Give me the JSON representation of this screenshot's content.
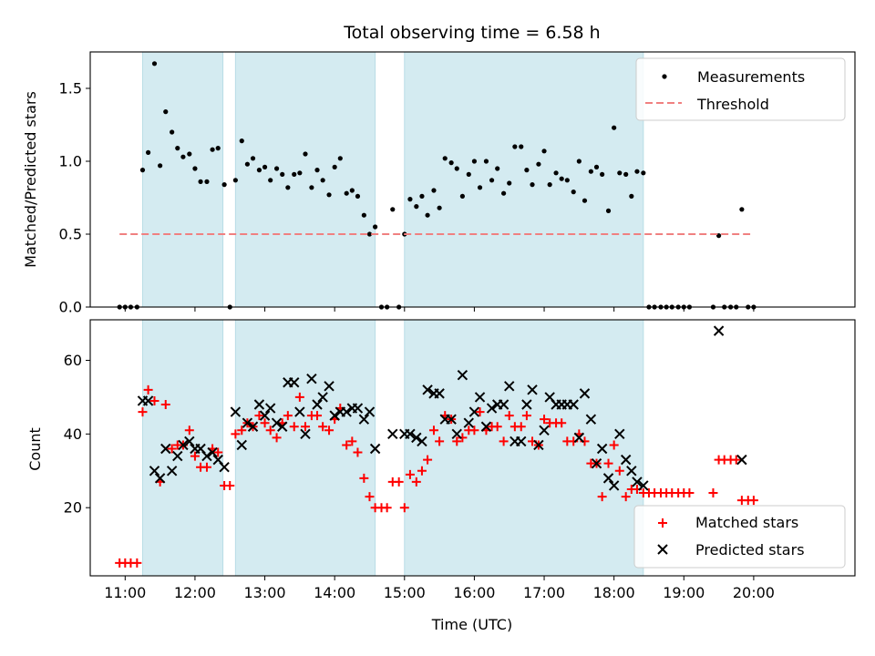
{
  "chart_data": [
    {
      "type": "scatter",
      "title": "Total observing time = 6.58 h",
      "ylabel": "Matched/Predicted stars",
      "xlabel": "",
      "x_unit": "hours_utc",
      "xlim": [
        10.5,
        21.45
      ],
      "ylim": [
        0,
        1.75
      ],
      "yticks": [
        0.0,
        0.5,
        1.0,
        1.5
      ],
      "ytick_labels": [
        "0.0",
        "0.5",
        "1.0",
        "1.5"
      ],
      "grid": false,
      "legend_position": "top-right",
      "shaded_intervals": [
        [
          11.25,
          12.4
        ],
        [
          12.58,
          14.58
        ],
        [
          15.0,
          18.42
        ]
      ],
      "shade_color": "#d4ebf1",
      "series": [
        {
          "name": "Measurements",
          "kind": "scatter",
          "marker": "dot",
          "color": "#000000",
          "x": [
            10.92,
            11.0,
            11.08,
            11.17,
            11.25,
            11.33,
            11.42,
            11.5,
            11.58,
            11.67,
            11.75,
            11.83,
            11.92,
            12.0,
            12.08,
            12.17,
            12.25,
            12.33,
            12.42,
            12.5,
            12.58,
            12.67,
            12.75,
            12.83,
            12.92,
            13.0,
            13.08,
            13.17,
            13.25,
            13.33,
            13.42,
            13.5,
            13.58,
            13.67,
            13.75,
            13.83,
            13.92,
            14.0,
            14.08,
            14.17,
            14.25,
            14.33,
            14.42,
            14.5,
            14.58,
            14.67,
            14.75,
            14.83,
            14.92,
            15.0,
            15.08,
            15.17,
            15.25,
            15.33,
            15.42,
            15.5,
            15.58,
            15.67,
            15.75,
            15.83,
            15.92,
            16.0,
            16.08,
            16.17,
            16.25,
            16.33,
            16.42,
            16.5,
            16.58,
            16.67,
            16.75,
            16.83,
            16.92,
            17.0,
            17.08,
            17.17,
            17.25,
            17.33,
            17.42,
            17.5,
            17.58,
            17.67,
            17.75,
            17.83,
            17.92,
            18.0,
            18.08,
            18.17,
            18.25,
            18.33,
            18.42,
            18.5,
            18.58,
            18.67,
            18.75,
            18.83,
            18.92,
            19.0,
            19.08,
            19.42,
            19.5,
            19.58,
            19.67,
            19.75,
            19.83,
            19.92,
            20.0
          ],
          "y": [
            0,
            0,
            0,
            0,
            0.94,
            1.06,
            1.67,
            0.97,
            1.34,
            1.2,
            1.09,
            1.03,
            1.05,
            0.95,
            0.86,
            0.86,
            1.08,
            1.09,
            0.84,
            0,
            0.87,
            1.14,
            0.98,
            1.02,
            0.94,
            0.96,
            0.87,
            0.95,
            0.91,
            0.82,
            0.91,
            0.92,
            1.05,
            0.82,
            0.94,
            0.87,
            0.77,
            0.96,
            1.02,
            0.78,
            0.8,
            0.76,
            0.63,
            0.5,
            0.55,
            0,
            0,
            0.67,
            0,
            0.5,
            0.74,
            0.69,
            0.76,
            0.63,
            0.8,
            0.68,
            1.02,
            0.99,
            0.95,
            0.76,
            0.91,
            1.0,
            0.82,
            1.0,
            0.87,
            0.95,
            0.78,
            0.85,
            1.1,
            1.1,
            0.94,
            0.84,
            0.98,
            1.07,
            0.84,
            0.92,
            0.88,
            0.87,
            0.79,
            1.0,
            0.73,
            0.93,
            0.96,
            0.91,
            0.66,
            1.23,
            0.92,
            0.91,
            0.76,
            0.93,
            0.92,
            0,
            0,
            0,
            0,
            0,
            0,
            0,
            0,
            0,
            0.49,
            0,
            0,
            0,
            0.67,
            0,
            0
          ]
        },
        {
          "name": "Threshold",
          "kind": "line",
          "dash": true,
          "color": "#f08080",
          "x": [
            10.92,
            19.95
          ],
          "y": [
            0.5,
            0.5
          ]
        }
      ]
    },
    {
      "type": "scatter",
      "title": "",
      "ylabel": "Count",
      "xlabel": "Time (UTC)",
      "x_unit": "hours_utc",
      "xlim": [
        10.5,
        21.45
      ],
      "ylim": [
        1.5,
        71
      ],
      "yticks": [
        20,
        40,
        60
      ],
      "ytick_labels": [
        "20",
        "40",
        "60"
      ],
      "xticks": [
        11,
        12,
        13,
        14,
        15,
        16,
        17,
        18,
        19,
        20
      ],
      "xtick_labels": [
        "11:00",
        "12:00",
        "13:00",
        "14:00",
        "15:00",
        "16:00",
        "17:00",
        "18:00",
        "19:00",
        "20:00"
      ],
      "grid": false,
      "legend_position": "bottom-right",
      "shaded_intervals": [
        [
          11.25,
          12.4
        ],
        [
          12.58,
          14.58
        ],
        [
          15.0,
          18.42
        ]
      ],
      "shade_color": "#d4ebf1",
      "series": [
        {
          "name": "Matched stars",
          "kind": "scatter",
          "marker": "plus",
          "color": "#ff0000",
          "x": [
            10.92,
            11.0,
            11.08,
            11.17,
            11.25,
            11.33,
            11.42,
            11.5,
            11.58,
            11.67,
            11.75,
            11.83,
            11.92,
            12.0,
            12.08,
            12.17,
            12.25,
            12.33,
            12.42,
            12.5,
            12.58,
            12.67,
            12.75,
            12.83,
            12.92,
            13.0,
            13.08,
            13.17,
            13.25,
            13.33,
            13.42,
            13.5,
            13.58,
            13.67,
            13.75,
            13.83,
            13.92,
            14.0,
            14.08,
            14.17,
            14.25,
            14.33,
            14.42,
            14.5,
            14.58,
            14.67,
            14.75,
            14.83,
            14.92,
            15.0,
            15.08,
            15.17,
            15.25,
            15.33,
            15.42,
            15.5,
            15.58,
            15.67,
            15.75,
            15.83,
            15.92,
            16.0,
            16.08,
            16.17,
            16.25,
            16.33,
            16.42,
            16.5,
            16.58,
            16.67,
            16.75,
            16.83,
            16.92,
            17.0,
            17.08,
            17.17,
            17.25,
            17.33,
            17.42,
            17.5,
            17.58,
            17.67,
            17.75,
            17.83,
            17.92,
            18.0,
            18.08,
            18.17,
            18.25,
            18.33,
            18.42,
            18.5,
            18.58,
            18.67,
            18.75,
            18.83,
            18.92,
            19.0,
            19.08,
            19.42,
            19.5,
            19.58,
            19.67,
            19.75,
            19.83,
            19.92,
            20.0
          ],
          "y": [
            5,
            5,
            5,
            5,
            46,
            52,
            49,
            27,
            48,
            36,
            37,
            37,
            41,
            34,
            31,
            31,
            36,
            35,
            26,
            26,
            40,
            41,
            43,
            42,
            45,
            43,
            41,
            39,
            43,
            45,
            42,
            50,
            42,
            45,
            45,
            42,
            41,
            44,
            47,
            37,
            38,
            35,
            28,
            23,
            20,
            20,
            20,
            27,
            27,
            20,
            29,
            27,
            30,
            33,
            41,
            38,
            45,
            44,
            38,
            39,
            41,
            41,
            46,
            41,
            42,
            42,
            38,
            45,
            42,
            42,
            45,
            38,
            37,
            44,
            43,
            43,
            43,
            38,
            38,
            40,
            38,
            32,
            32,
            23,
            32,
            37,
            30,
            23,
            25,
            25,
            24,
            24,
            24,
            24,
            24,
            24,
            24,
            24,
            24,
            24,
            33,
            33,
            33,
            33,
            22,
            22,
            22
          ]
        },
        {
          "name": "Predicted stars",
          "kind": "scatter",
          "marker": "cross",
          "color": "#000000",
          "x": [
            11.25,
            11.33,
            11.42,
            11.5,
            11.58,
            11.67,
            11.75,
            11.83,
            11.92,
            12.0,
            12.08,
            12.17,
            12.25,
            12.33,
            12.42,
            12.58,
            12.67,
            12.75,
            12.83,
            12.92,
            13.0,
            13.08,
            13.17,
            13.25,
            13.33,
            13.42,
            13.5,
            13.58,
            13.67,
            13.75,
            13.83,
            13.92,
            14.0,
            14.08,
            14.17,
            14.25,
            14.33,
            14.42,
            14.5,
            14.58,
            14.83,
            15.0,
            15.08,
            15.17,
            15.25,
            15.33,
            15.42,
            15.5,
            15.58,
            15.67,
            15.75,
            15.83,
            15.92,
            16.0,
            16.08,
            16.17,
            16.25,
            16.33,
            16.42,
            16.5,
            16.58,
            16.67,
            16.75,
            16.83,
            16.92,
            17.0,
            17.08,
            17.17,
            17.25,
            17.33,
            17.42,
            17.5,
            17.58,
            17.67,
            17.75,
            17.83,
            17.92,
            18.0,
            18.08,
            18.17,
            18.25,
            18.33,
            18.42,
            19.5,
            19.83
          ],
          "y": [
            49,
            49,
            30,
            28,
            36,
            30,
            34,
            37,
            38,
            36,
            36,
            34,
            35,
            33,
            31,
            46,
            37,
            43,
            42,
            48,
            45,
            47,
            43,
            42,
            54,
            54,
            46,
            40,
            55,
            48,
            50,
            53,
            45,
            46,
            46,
            47,
            47,
            44,
            46,
            36,
            40,
            40,
            40,
            39,
            38,
            52,
            51,
            51,
            44,
            44,
            40,
            56,
            43,
            46,
            50,
            42,
            47,
            48,
            48,
            53,
            38,
            38,
            48,
            52,
            37,
            41,
            50,
            48,
            48,
            48,
            48,
            39,
            51,
            44,
            32,
            36,
            28,
            26,
            40,
            33,
            30,
            27,
            26,
            68,
            33
          ]
        }
      ]
    }
  ]
}
